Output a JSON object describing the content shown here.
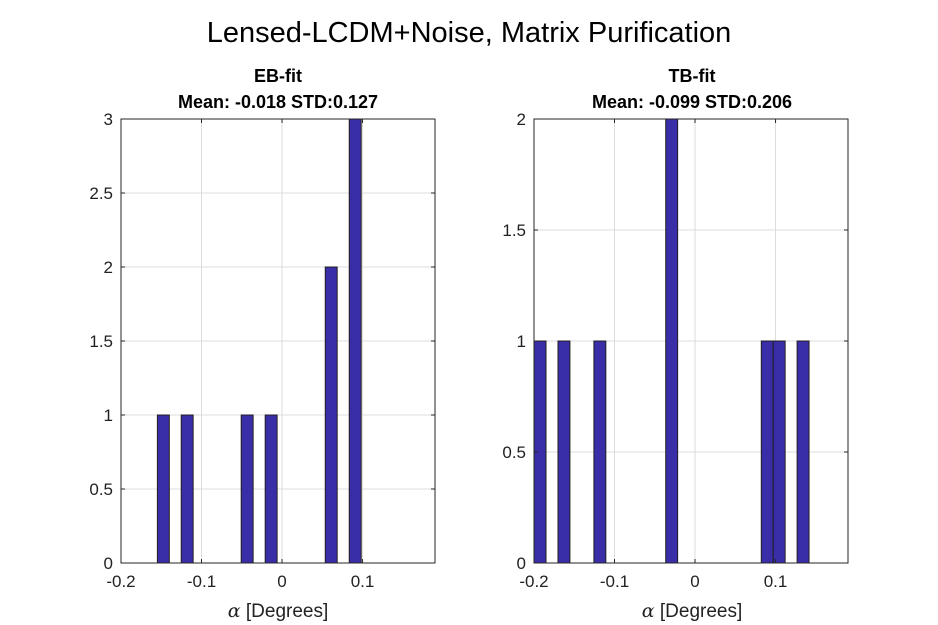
{
  "figure": {
    "title": "Lensed-LCDM+Noise, Matrix Purification",
    "bar_color": "#3a2ea8"
  },
  "chart_data": [
    {
      "type": "bar",
      "title_line1": "EB-fit",
      "title_line2": "Mean: -0.018 STD:0.127",
      "xlabel_symbol": "α",
      "xlabel_text": " [Degrees]",
      "ylabel": "",
      "xlim": [
        -0.2,
        0.19
      ],
      "ylim": [
        0,
        3
      ],
      "xticks": [
        -0.2,
        -0.1,
        0,
        0.1
      ],
      "xtick_labels": [
        "-0.2",
        "-0.1",
        "0",
        "0.1"
      ],
      "yticks": [
        0,
        0.5,
        1,
        1.5,
        2,
        2.5,
        3
      ],
      "ytick_labels": [
        "0",
        "0.5",
        "1",
        "1.5",
        "2",
        "2.5",
        "3"
      ],
      "grid": true,
      "bin_width": 0.0148,
      "bins": [
        {
          "center": -0.1474,
          "count": 1
        },
        {
          "center": -0.1178,
          "count": 1
        },
        {
          "center": -0.0433,
          "count": 1
        },
        {
          "center": -0.0135,
          "count": 1
        },
        {
          "center": 0.0611,
          "count": 2
        },
        {
          "center": 0.0909,
          "count": 3
        }
      ]
    },
    {
      "type": "bar",
      "title_line1": "TB-fit",
      "title_line2": "Mean: -0.099 STD:0.206",
      "xlabel_symbol": "α",
      "xlabel_text": " [Degrees]",
      "ylabel": "",
      "xlim": [
        -0.2,
        0.19
      ],
      "ylim": [
        0,
        2
      ],
      "xticks": [
        -0.2,
        -0.1,
        0,
        0.1
      ],
      "xtick_labels": [
        "-0.2",
        "-0.1",
        "0",
        "0.1"
      ],
      "yticks": [
        0,
        0.5,
        1,
        1.5,
        2
      ],
      "ytick_labels": [
        "0",
        "0.5",
        "1",
        "1.5",
        "2"
      ],
      "grid": true,
      "bin_width": 0.0148,
      "bins": [
        {
          "center": -0.1925,
          "count": 1
        },
        {
          "center": -0.1628,
          "count": 1
        },
        {
          "center": -0.1182,
          "count": 1
        },
        {
          "center": -0.029,
          "count": 2
        },
        {
          "center": 0.0897,
          "count": 1
        },
        {
          "center": 0.1045,
          "count": 1
        },
        {
          "center": 0.1342,
          "count": 1
        }
      ]
    }
  ]
}
